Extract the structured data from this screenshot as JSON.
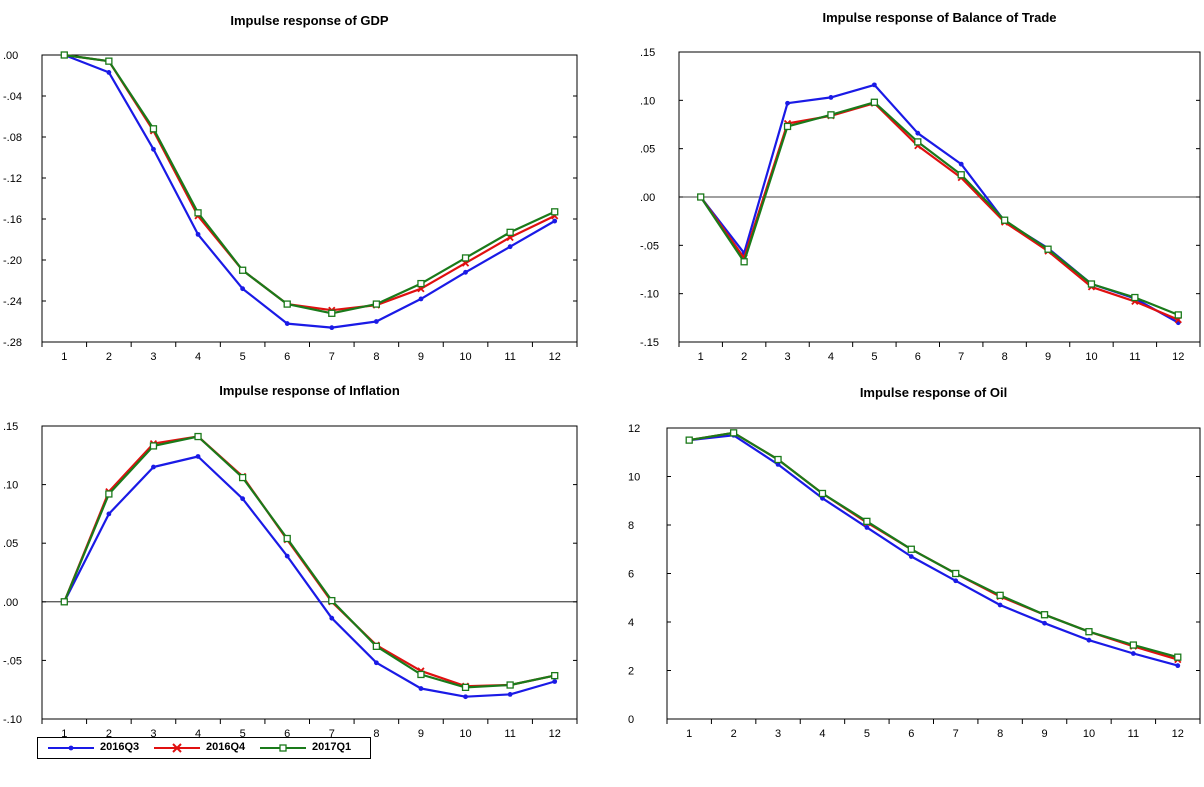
{
  "colors": {
    "s1": "#1a1ae6",
    "s2": "#e01010",
    "s3": "#1a7a1a",
    "axis": "#000000",
    "zero_line": "#000000"
  },
  "legend": {
    "position": "bottom-left",
    "entries": [
      {
        "name": "2016Q3",
        "marker": "dot",
        "color": "#1a1ae6"
      },
      {
        "name": "2016Q4",
        "marker": "x",
        "color": "#e01010"
      },
      {
        "name": "2017Q1",
        "marker": "square",
        "color": "#1a7a1a"
      }
    ]
  },
  "chart_data": [
    {
      "type": "line",
      "title": "Impulse response of GDP",
      "x": [
        1,
        2,
        3,
        4,
        5,
        6,
        7,
        8,
        9,
        10,
        11,
        12
      ],
      "ylim": [
        -0.28,
        0.0
      ],
      "yticks": [
        ".00",
        "-.04",
        "-.08",
        "-.12",
        "-.16",
        "-.20",
        "-.24",
        "-.28"
      ],
      "ytick_values": [
        0,
        -0.04,
        -0.08,
        -0.12,
        -0.16,
        -0.2,
        -0.24,
        -0.28
      ],
      "zero_line": false,
      "series": [
        {
          "name": "2016Q3",
          "values": [
            0.0,
            -0.017,
            -0.092,
            -0.175,
            -0.228,
            -0.262,
            -0.266,
            -0.26,
            -0.238,
            -0.212,
            -0.187,
            -0.162
          ]
        },
        {
          "name": "2016Q4",
          "values": [
            0.0,
            -0.006,
            -0.074,
            -0.157,
            -0.21,
            -0.243,
            -0.249,
            -0.244,
            -0.228,
            -0.203,
            -0.178,
            -0.157
          ]
        },
        {
          "name": "2017Q1",
          "values": [
            0.0,
            -0.006,
            -0.072,
            -0.154,
            -0.21,
            -0.243,
            -0.252,
            -0.243,
            -0.223,
            -0.198,
            -0.173,
            -0.153
          ]
        }
      ]
    },
    {
      "type": "line",
      "title": "Impulse response of Balance of Trade",
      "x": [
        1,
        2,
        3,
        4,
        5,
        6,
        7,
        8,
        9,
        10,
        11,
        12
      ],
      "ylim": [
        -0.15,
        0.15
      ],
      "yticks": [
        ".15",
        ".10",
        ".05",
        ".00",
        "-.05",
        "-.10",
        "-.15"
      ],
      "ytick_values": [
        0.15,
        0.1,
        0.05,
        0.0,
        -0.05,
        -0.1,
        -0.15
      ],
      "zero_line": true,
      "series": [
        {
          "name": "2016Q3",
          "values": [
            0.0,
            -0.058,
            0.097,
            0.103,
            0.116,
            0.066,
            0.034,
            -0.025,
            -0.053,
            -0.09,
            -0.105,
            -0.13
          ]
        },
        {
          "name": "2016Q4",
          "values": [
            0.0,
            -0.063,
            0.076,
            0.084,
            0.097,
            0.053,
            0.02,
            -0.026,
            -0.056,
            -0.093,
            -0.108,
            -0.127
          ]
        },
        {
          "name": "2017Q1",
          "values": [
            0.0,
            -0.067,
            0.073,
            0.085,
            0.098,
            0.057,
            0.023,
            -0.024,
            -0.054,
            -0.09,
            -0.104,
            -0.122
          ]
        }
      ]
    },
    {
      "type": "line",
      "title": "Impulse response of Inflation",
      "x": [
        1,
        2,
        3,
        4,
        5,
        6,
        7,
        8,
        9,
        10,
        11,
        12
      ],
      "ylim": [
        -0.1,
        0.15
      ],
      "yticks": [
        ".15",
        ".10",
        ".05",
        ".00",
        "-.05",
        "-.10"
      ],
      "ytick_values": [
        0.15,
        0.1,
        0.05,
        0.0,
        -0.05,
        -0.1
      ],
      "zero_line": true,
      "series": [
        {
          "name": "2016Q3",
          "values": [
            0.0,
            0.075,
            0.115,
            0.124,
            0.088,
            0.039,
            -0.014,
            -0.052,
            -0.074,
            -0.081,
            -0.079,
            -0.068
          ]
        },
        {
          "name": "2016Q4",
          "values": [
            0.0,
            0.094,
            0.135,
            0.141,
            0.107,
            0.053,
            0.0,
            -0.037,
            -0.059,
            -0.072,
            -0.071,
            -0.063
          ]
        },
        {
          "name": "2017Q1",
          "values": [
            0.0,
            0.092,
            0.133,
            0.141,
            0.106,
            0.054,
            0.001,
            -0.038,
            -0.062,
            -0.073,
            -0.071,
            -0.063
          ]
        }
      ]
    },
    {
      "type": "line",
      "title": "Impulse response of Oil",
      "x": [
        1,
        2,
        3,
        4,
        5,
        6,
        7,
        8,
        9,
        10,
        11,
        12
      ],
      "ylim": [
        0,
        12
      ],
      "yticks": [
        "0",
        "2",
        "4",
        "6",
        "8",
        "10",
        "12"
      ],
      "ytick_values": [
        0,
        2,
        4,
        6,
        8,
        10,
        12
      ],
      "zero_line": false,
      "series": [
        {
          "name": "2016Q3",
          "values": [
            11.5,
            11.7,
            10.5,
            9.1,
            7.9,
            6.7,
            5.7,
            4.7,
            3.95,
            3.25,
            2.7,
            2.2
          ]
        },
        {
          "name": "2016Q4",
          "values": [
            11.5,
            11.8,
            10.7,
            9.3,
            8.1,
            7.0,
            6.0,
            5.05,
            4.3,
            3.6,
            3.0,
            2.45
          ]
        },
        {
          "name": "2017Q1",
          "values": [
            11.5,
            11.8,
            10.7,
            9.3,
            8.15,
            7.0,
            6.0,
            5.1,
            4.3,
            3.6,
            3.05,
            2.55
          ]
        }
      ]
    }
  ]
}
